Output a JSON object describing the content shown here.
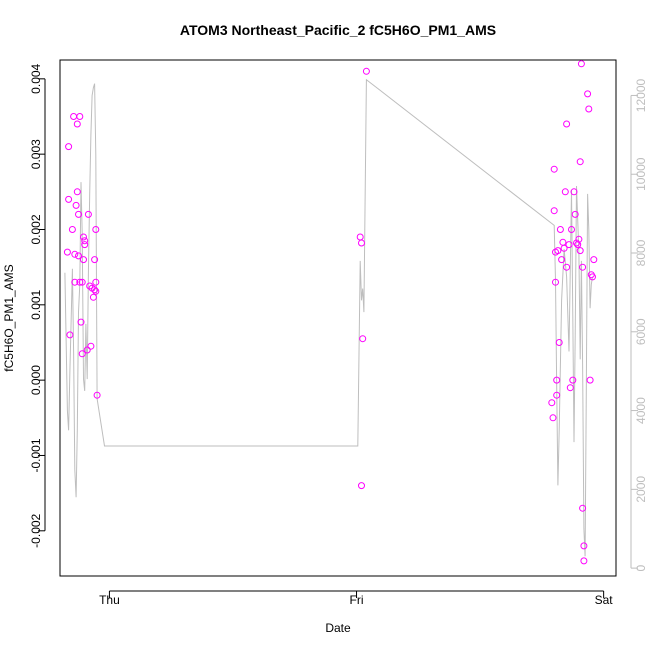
{
  "chart_data": {
    "type": "scatter",
    "title": "ATOM3 Northeast_Pacific_2 fC5H6O_PM1_AMS",
    "xlabel": "Date",
    "ylabel": "fC5H6O_PM1_AMS",
    "x_ticks": [
      "Thu",
      "Fri",
      "Sat"
    ],
    "x_unit": "days since Thu 00:00",
    "xlim": [
      -0.2,
      2.05
    ],
    "ylim": [
      -0.0026,
      0.00425
    ],
    "y_ticks": [
      "-0.002",
      "-0.001",
      "0.000",
      "0.001",
      "0.002",
      "0.003",
      "0.004"
    ],
    "y_tick_values": [
      -0.002,
      -0.001,
      0,
      0.001,
      0.002,
      0.003,
      0.004
    ],
    "y2lim": [
      -200,
      12900
    ],
    "y2_ticks": [
      "0",
      "2000",
      "4000",
      "6000",
      "8000",
      "10000",
      "12000"
    ],
    "y2_tick_values": [
      0,
      2000,
      4000,
      6000,
      8000,
      10000,
      12000
    ],
    "grid": false,
    "colors": {
      "points": "#ff00ff",
      "altitude_line": "#bebebe",
      "axes": "#000000",
      "right_axis": "#bebebe"
    },
    "series": [
      {
        "values": [
          [
            -0.17,
            0.0017
          ],
          [
            -0.165,
            0.0024
          ],
          [
            -0.16,
            0.0006
          ],
          [
            -0.165,
            0.0031
          ],
          [
            -0.15,
            0.002
          ],
          [
            -0.145,
            0.0035
          ],
          [
            -0.14,
            0.00167
          ],
          [
            -0.14,
            0.0013
          ],
          [
            -0.135,
            0.00232
          ],
          [
            -0.13,
            0.0034
          ],
          [
            -0.13,
            0.0025
          ],
          [
            -0.125,
            0.00165
          ],
          [
            -0.125,
            0.0022
          ],
          [
            -0.12,
            0.0035
          ],
          [
            -0.12,
            0.0013
          ],
          [
            -0.115,
            0.00077
          ],
          [
            -0.11,
            0.0013
          ],
          [
            -0.11,
            0.00035
          ],
          [
            -0.105,
            0.0019
          ],
          [
            -0.105,
            0.0016
          ],
          [
            -0.1,
            0.00185
          ],
          [
            -0.1,
            0.0018
          ],
          [
            -0.09,
            0.0004
          ],
          [
            -0.085,
            0.0022
          ],
          [
            -0.08,
            0.00125
          ],
          [
            -0.075,
            0.00045
          ],
          [
            -0.07,
            0.00122
          ],
          [
            -0.065,
            0.0011
          ],
          [
            -0.06,
            0.0012
          ],
          [
            -0.06,
            0.0016
          ],
          [
            -0.055,
            0.002
          ],
          [
            -0.055,
            0.0013
          ],
          [
            -0.055,
            0.00118
          ],
          [
            -0.05,
            -0.0002
          ],
          [
            1.015,
            0.0019
          ],
          [
            1.02,
            0.00182
          ],
          [
            1.025,
            0.00055
          ],
          [
            1.02,
            -0.0014
          ],
          [
            1.04,
            0.0041
          ],
          [
            1.79,
            -0.0003
          ],
          [
            1.795,
            -0.0005
          ],
          [
            1.8,
            0.00225
          ],
          [
            1.8,
            0.0028
          ],
          [
            1.805,
            0.0017
          ],
          [
            1.805,
            0.0013
          ],
          [
            1.81,
            0.0
          ],
          [
            1.81,
            -0.0002
          ],
          [
            1.815,
            0.00172
          ],
          [
            1.82,
            0.0005
          ],
          [
            1.825,
            0.002
          ],
          [
            1.83,
            0.0016
          ],
          [
            1.835,
            0.00183
          ],
          [
            1.84,
            0.00175
          ],
          [
            1.845,
            0.0025
          ],
          [
            1.85,
            0.0034
          ],
          [
            1.85,
            0.0015
          ],
          [
            1.86,
            0.0018
          ],
          [
            1.865,
            -0.0001
          ],
          [
            1.87,
            0.002
          ],
          [
            1.875,
            0.0
          ],
          [
            1.88,
            0.0025
          ],
          [
            1.885,
            0.0022
          ],
          [
            1.89,
            0.00182
          ],
          [
            1.895,
            0.0018
          ],
          [
            1.9,
            0.00187
          ],
          [
            1.905,
            0.0029
          ],
          [
            1.905,
            0.00172
          ],
          [
            1.91,
            0.0042
          ],
          [
            1.915,
            0.0015
          ],
          [
            1.915,
            -0.0017
          ],
          [
            1.92,
            -0.0022
          ],
          [
            1.92,
            -0.0024
          ],
          [
            1.935,
            0.0038
          ],
          [
            1.94,
            0.0036
          ],
          [
            1.945,
            0.0
          ],
          [
            1.95,
            0.0014
          ],
          [
            1.955,
            0.00137
          ],
          [
            1.96,
            0.0016
          ]
        ]
      },
      {
        "axis": "right",
        "values": [
          [
            -0.18,
            7500
          ],
          [
            -0.17,
            4000
          ],
          [
            -0.165,
            3500
          ],
          [
            -0.16,
            5000
          ],
          [
            -0.15,
            7600
          ],
          [
            -0.145,
            5500
          ],
          [
            -0.14,
            2500
          ],
          [
            -0.135,
            1800
          ],
          [
            -0.13,
            3500
          ],
          [
            -0.125,
            6500
          ],
          [
            -0.12,
            7200
          ],
          [
            -0.115,
            9800
          ],
          [
            -0.11,
            8500
          ],
          [
            -0.105,
            4800
          ],
          [
            -0.1,
            4500
          ],
          [
            -0.095,
            6200
          ],
          [
            -0.09,
            4800
          ],
          [
            -0.085,
            7500
          ],
          [
            -0.08,
            9500
          ],
          [
            -0.075,
            11000
          ],
          [
            -0.07,
            12000
          ],
          [
            -0.065,
            12200
          ],
          [
            -0.06,
            12300
          ],
          [
            -0.055,
            10500
          ],
          [
            -0.05,
            4300
          ],
          [
            -0.02,
            3100
          ],
          [
            0.7,
            3100
          ],
          [
            1.005,
            3100
          ],
          [
            1.015,
            7800
          ],
          [
            1.02,
            6800
          ],
          [
            1.025,
            7100
          ],
          [
            1.03,
            6500
          ],
          [
            1.04,
            12400
          ],
          [
            1.8,
            8700
          ],
          [
            1.805,
            7300
          ],
          [
            1.81,
            4600
          ],
          [
            1.815,
            2100
          ],
          [
            1.82,
            3500
          ],
          [
            1.83,
            6800
          ],
          [
            1.84,
            8100
          ],
          [
            1.85,
            7400
          ],
          [
            1.86,
            5500
          ],
          [
            1.87,
            9600
          ],
          [
            1.875,
            6400
          ],
          [
            1.88,
            3200
          ],
          [
            1.885,
            5900
          ],
          [
            1.89,
            9700
          ],
          [
            1.9,
            8000
          ],
          [
            1.905,
            5300
          ],
          [
            1.91,
            7800
          ],
          [
            1.915,
            5200
          ],
          [
            1.92,
            1000
          ],
          [
            1.925,
            300
          ],
          [
            1.93,
            4500
          ],
          [
            1.935,
            9500
          ],
          [
            1.94,
            8600
          ],
          [
            1.945,
            6600
          ],
          [
            1.95,
            7200
          ],
          [
            1.955,
            7400
          ]
        ]
      }
    ]
  }
}
